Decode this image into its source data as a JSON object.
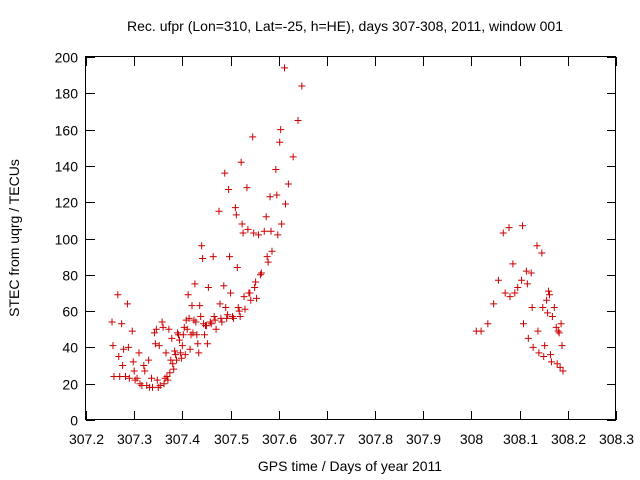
{
  "chart_data": {
    "type": "scatter",
    "title": "Rec. ufpr (Lon=310, Lat=-25, h=HE), days 307-308, 2011, window 001",
    "xlabel": "GPS time / Days of year 2011",
    "ylabel": "STEC from uqrg / TECUs",
    "xlim": [
      307.2,
      308.3
    ],
    "ylim": [
      0,
      200
    ],
    "xticks": [
      307.2,
      307.3,
      307.4,
      307.5,
      307.6,
      307.7,
      307.8,
      307.9,
      308,
      308.1,
      308.2,
      308.3
    ],
    "xtick_labels": [
      "307.2",
      "307.3",
      "307.4",
      "307.5",
      "307.6",
      "307.7",
      "307.8",
      "307.9",
      "308",
      "308.1",
      "308.2",
      "308.3"
    ],
    "yticks": [
      0,
      20,
      40,
      60,
      80,
      100,
      120,
      140,
      160,
      180,
      200
    ],
    "ytick_labels": [
      "0",
      "20",
      "40",
      "60",
      "80",
      "100",
      "120",
      "140",
      "160",
      "180",
      "200"
    ],
    "grid": false,
    "marker": "+",
    "marker_color": "#cc0000",
    "series": [
      {
        "points": [
          [
            307.254,
            54
          ],
          [
            307.256,
            41
          ],
          [
            307.258,
            24
          ],
          [
            307.266,
            69
          ],
          [
            307.268,
            35
          ],
          [
            307.27,
            24
          ],
          [
            307.274,
            53
          ],
          [
            307.276,
            30
          ],
          [
            307.278,
            39
          ],
          [
            307.282,
            24
          ],
          [
            307.286,
            64
          ],
          [
            307.288,
            40
          ],
          [
            307.29,
            23
          ],
          [
            307.296,
            49
          ],
          [
            307.298,
            32
          ],
          [
            307.3,
            27
          ],
          [
            307.302,
            22
          ],
          [
            307.306,
            23
          ],
          [
            307.31,
            37
          ],
          [
            307.312,
            20
          ],
          [
            307.316,
            19
          ],
          [
            307.32,
            30
          ],
          [
            307.322,
            27
          ],
          [
            307.326,
            19
          ],
          [
            307.33,
            33
          ],
          [
            307.332,
            18
          ],
          [
            307.336,
            23
          ],
          [
            307.338,
            18
          ],
          [
            307.342,
            48
          ],
          [
            307.344,
            42
          ],
          [
            307.346,
            50
          ],
          [
            307.348,
            22
          ],
          [
            307.35,
            18
          ],
          [
            307.352,
            41
          ],
          [
            307.354,
            19
          ],
          [
            307.358,
            54
          ],
          [
            307.36,
            51
          ],
          [
            307.362,
            20
          ],
          [
            307.364,
            23
          ],
          [
            307.366,
            37
          ],
          [
            307.368,
            24
          ],
          [
            307.37,
            22
          ],
          [
            307.372,
            50
          ],
          [
            307.374,
            26
          ],
          [
            307.376,
            33
          ],
          [
            307.378,
            45
          ],
          [
            307.38,
            31
          ],
          [
            307.382,
            28
          ],
          [
            307.384,
            38
          ],
          [
            307.386,
            36
          ],
          [
            307.388,
            33
          ],
          [
            307.39,
            48
          ],
          [
            307.392,
            47
          ],
          [
            307.394,
            44
          ],
          [
            307.396,
            37
          ],
          [
            307.398,
            34
          ],
          [
            307.4,
            41
          ],
          [
            307.402,
            47
          ],
          [
            307.404,
            51
          ],
          [
            307.406,
            36
          ],
          [
            307.408,
            55
          ],
          [
            307.41,
            50
          ],
          [
            307.412,
            69
          ],
          [
            307.414,
            56
          ],
          [
            307.416,
            39
          ],
          [
            307.418,
            47
          ],
          [
            307.42,
            63
          ],
          [
            307.422,
            48
          ],
          [
            307.424,
            55
          ],
          [
            307.426,
            75
          ],
          [
            307.428,
            54
          ],
          [
            307.43,
            47
          ],
          [
            307.432,
            42
          ],
          [
            307.434,
            37
          ],
          [
            307.436,
            63
          ],
          [
            307.438,
            57
          ],
          [
            307.44,
            96
          ],
          [
            307.442,
            89
          ],
          [
            307.444,
            53
          ],
          [
            307.446,
            47
          ],
          [
            307.448,
            52
          ],
          [
            307.45,
            52
          ],
          [
            307.452,
            42
          ],
          [
            307.454,
            73
          ],
          [
            307.458,
            54
          ],
          [
            307.46,
            53
          ],
          [
            307.464,
            90
          ],
          [
            307.466,
            57
          ],
          [
            307.468,
            55
          ],
          [
            307.47,
            50
          ],
          [
            307.476,
            115
          ],
          [
            307.478,
            64
          ],
          [
            307.48,
            56
          ],
          [
            307.482,
            54
          ],
          [
            307.486,
            74
          ],
          [
            307.488,
            136
          ],
          [
            307.49,
            62
          ],
          [
            307.492,
            56
          ],
          [
            307.494,
            58
          ],
          [
            307.496,
            127
          ],
          [
            307.498,
            90
          ],
          [
            307.5,
            70
          ],
          [
            307.504,
            57
          ],
          [
            307.506,
            56
          ],
          [
            307.51,
            117
          ],
          [
            307.512,
            113
          ],
          [
            307.514,
            84
          ],
          [
            307.516,
            62
          ],
          [
            307.518,
            60
          ],
          [
            307.52,
            57
          ],
          [
            307.522,
            142
          ],
          [
            307.524,
            108
          ],
          [
            307.526,
            103
          ],
          [
            307.528,
            68
          ],
          [
            307.53,
            61
          ],
          [
            307.534,
            128
          ],
          [
            307.536,
            105
          ],
          [
            307.538,
            70
          ],
          [
            307.54,
            70
          ],
          [
            307.542,
            66
          ],
          [
            307.546,
            156
          ],
          [
            307.548,
            103
          ],
          [
            307.55,
            73
          ],
          [
            307.552,
            76
          ],
          [
            307.554,
            67
          ],
          [
            307.558,
            102
          ],
          [
            307.562,
            80
          ],
          [
            307.564,
            81
          ],
          [
            307.57,
            104
          ],
          [
            307.574,
            112
          ],
          [
            307.576,
            90
          ],
          [
            307.578,
            87
          ],
          [
            307.582,
            123
          ],
          [
            307.584,
            104
          ],
          [
            307.586,
            93
          ],
          [
            307.594,
            138
          ],
          [
            307.596,
            124
          ],
          [
            307.598,
            102
          ],
          [
            307.602,
            153
          ],
          [
            307.604,
            160
          ],
          [
            307.606,
            108
          ],
          [
            307.612,
            194
          ],
          [
            307.614,
            119
          ],
          [
            307.62,
            130
          ],
          [
            307.63,
            145
          ],
          [
            307.64,
            165
          ],
          [
            307.648,
            184
          ],
          [
            308.01,
            49
          ],
          [
            308.02,
            49
          ],
          [
            308.034,
            53
          ],
          [
            308.046,
            64
          ],
          [
            308.056,
            77
          ],
          [
            308.066,
            103
          ],
          [
            308.07,
            70
          ],
          [
            308.078,
            106
          ],
          [
            308.08,
            68
          ],
          [
            308.086,
            86
          ],
          [
            308.09,
            70
          ],
          [
            308.096,
            73
          ],
          [
            308.104,
            77
          ],
          [
            308.106,
            107
          ],
          [
            308.108,
            53
          ],
          [
            308.114,
            82
          ],
          [
            308.116,
            75
          ],
          [
            308.118,
            45
          ],
          [
            308.124,
            81
          ],
          [
            308.126,
            62
          ],
          [
            308.128,
            40
          ],
          [
            308.136,
            96
          ],
          [
            308.138,
            49
          ],
          [
            308.14,
            37
          ],
          [
            308.146,
            92
          ],
          [
            308.148,
            62
          ],
          [
            308.15,
            35
          ],
          [
            308.152,
            41
          ],
          [
            308.156,
            66
          ],
          [
            308.158,
            59
          ],
          [
            308.16,
            71
          ],
          [
            308.162,
            69
          ],
          [
            308.164,
            36
          ],
          [
            308.166,
            32
          ],
          [
            308.168,
            57
          ],
          [
            308.172,
            62
          ],
          [
            308.176,
            51
          ],
          [
            308.178,
            31
          ],
          [
            308.18,
            49
          ],
          [
            308.182,
            48
          ],
          [
            308.184,
            29
          ],
          [
            308.186,
            53
          ],
          [
            308.188,
            41
          ],
          [
            308.19,
            27
          ]
        ]
      }
    ]
  }
}
